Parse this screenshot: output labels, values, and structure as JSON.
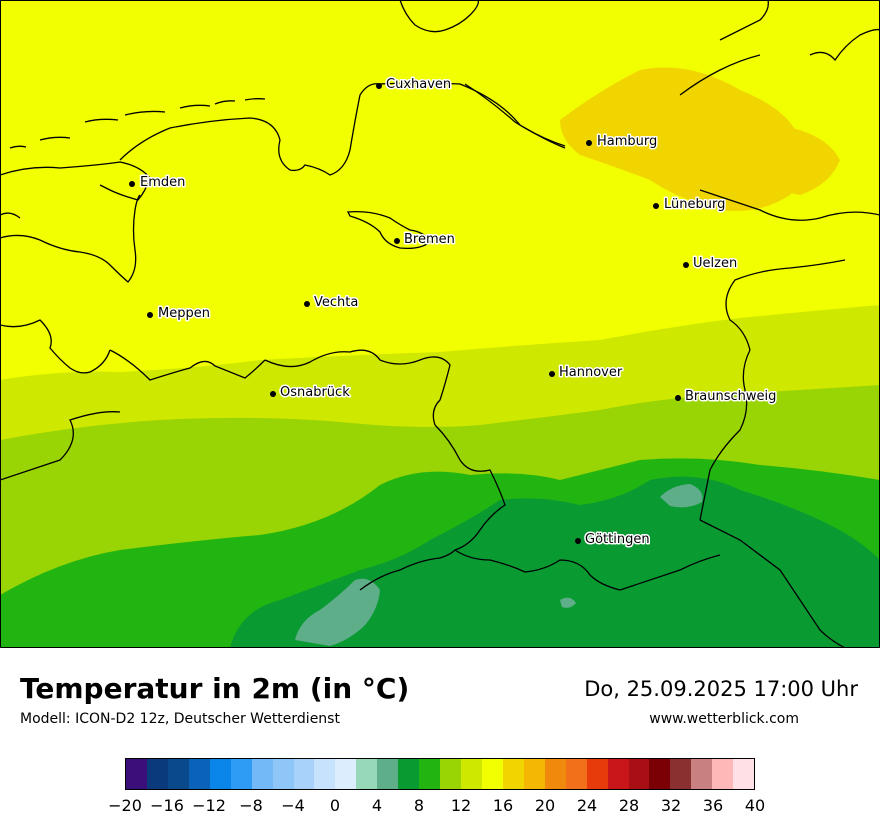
{
  "title": "Temperatur in 2m (in °C)",
  "model": "Modell: ICON-D2 12z, Deutscher Wetterdienst",
  "datetime": "Do, 25.09.2025 17:00 Uhr",
  "website": "www.wetterblick.com",
  "cities": [
    {
      "name": "Cuxhaven"
    },
    {
      "name": "Hamburg"
    },
    {
      "name": "Emden"
    },
    {
      "name": "Lüneburg"
    },
    {
      "name": "Bremen"
    },
    {
      "name": "Uelzen"
    },
    {
      "name": "Vechta"
    },
    {
      "name": "Meppen"
    },
    {
      "name": "Hannover"
    },
    {
      "name": "Osnabrück"
    },
    {
      "name": "Braunschweig"
    },
    {
      "name": "Göttingen"
    }
  ],
  "legend": {
    "colors": [
      "#3b0f7a",
      "#0a3a7c",
      "#0a4a8c",
      "#0a63b8",
      "#0a86ea",
      "#2e9bf5",
      "#73b9f7",
      "#8fc6f8",
      "#a9d2fa",
      "#c7e2fc",
      "#dcedfd",
      "#97d8b8",
      "#5fae8a",
      "#0a9a32",
      "#22b512",
      "#99d404",
      "#cfe800",
      "#f2ff00",
      "#f1d500",
      "#f3b704",
      "#f18a0c",
      "#f2701a",
      "#e83b0c",
      "#c8161a",
      "#a80f14",
      "#7a0006",
      "#8b3030",
      "#c98080",
      "#ffb8b8",
      "#ffe0e6"
    ],
    "ticks": [
      "−20",
      "−16",
      "−12",
      "−8",
      "−4",
      "0",
      "4",
      "8",
      "12",
      "16",
      "20",
      "24",
      "28",
      "32",
      "36",
      "40"
    ]
  }
}
